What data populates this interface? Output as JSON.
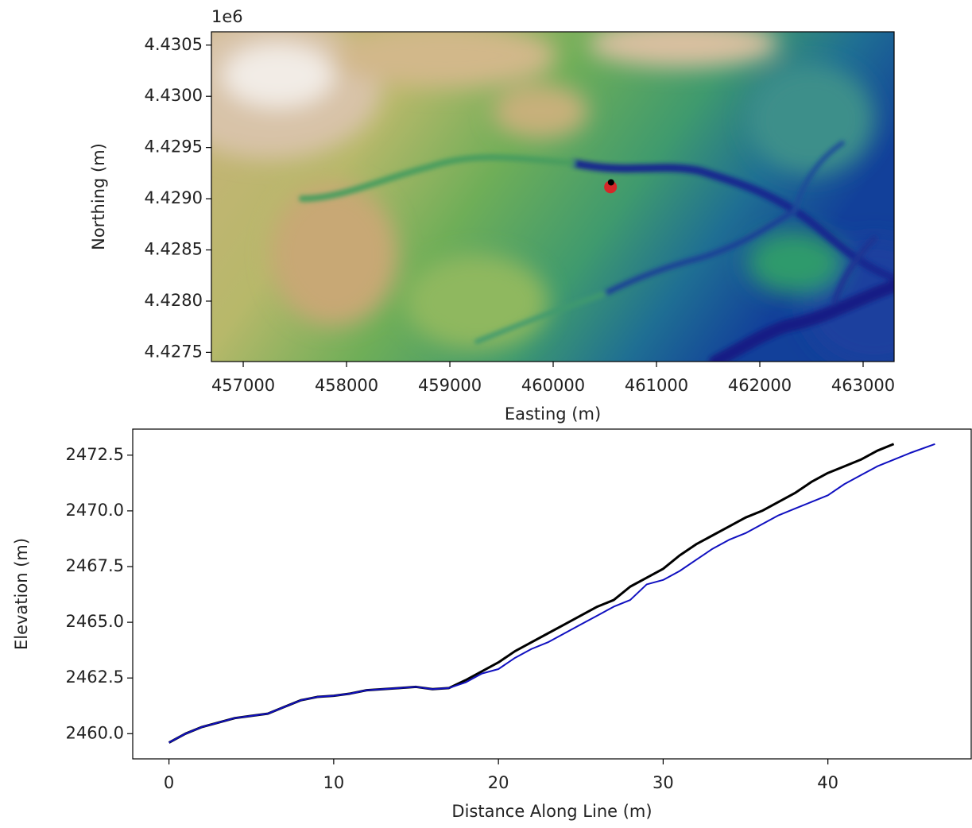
{
  "chart_data": [
    {
      "type": "image",
      "offset_text": "1e6",
      "xlabel": "Easting (m)",
      "ylabel": "Northing (m)",
      "xlim": [
        456692,
        463300
      ],
      "ylim": [
        4427410,
        4430630
      ],
      "xticks": [
        457000,
        458000,
        459000,
        460000,
        461000,
        462000,
        463000
      ],
      "yticks": [
        {
          "value": 4427500,
          "label": "4.4275"
        },
        {
          "value": 4428000,
          "label": "4.4280"
        },
        {
          "value": 4428500,
          "label": "4.4285"
        },
        {
          "value": 4429000,
          "label": "4.4290"
        },
        {
          "value": 4429500,
          "label": "4.4295"
        },
        {
          "value": 4430000,
          "label": "4.4300"
        },
        {
          "value": 4430500,
          "label": "4.4305"
        }
      ],
      "series": [
        {
          "color": "#d62728",
          "x": [
            460555
          ],
          "y": [
            4429115
          ]
        },
        {
          "color": "#000000",
          "x": [
            460560
          ],
          "y": [
            4429160
          ]
        }
      ]
    },
    {
      "type": "line",
      "xlabel": "Distance Along Line (m)",
      "ylabel": "Elevation (m)",
      "xlim": [
        -2.2,
        48.7
      ],
      "ylim": [
        2458.87,
        2473.67
      ],
      "xticks": [
        0,
        10,
        20,
        30,
        40
      ],
      "yticks": [
        {
          "value": 2460,
          "label": "2460.0"
        },
        2462.5,
        {
          "value": 2465,
          "label": "2465.0"
        },
        2467.5,
        {
          "value": 2470,
          "label": "2470.0"
        },
        2472.5
      ],
      "series": [
        {
          "color": "#000000",
          "width": 3,
          "x": [
            0,
            1,
            2,
            3,
            4,
            5,
            6,
            7,
            8,
            9,
            10,
            11,
            12,
            13,
            14,
            15,
            16,
            17,
            18,
            19,
            20,
            21,
            22,
            23,
            24,
            25,
            26,
            27,
            28,
            29,
            30,
            31,
            32,
            33,
            34,
            35,
            36,
            37,
            38,
            39,
            40,
            41,
            42,
            43,
            44
          ],
          "values": [
            2459.6,
            2460.0,
            2460.3,
            2460.5,
            2460.7,
            2460.8,
            2460.9,
            2461.2,
            2461.5,
            2461.65,
            2461.7,
            2461.8,
            2461.95,
            2462.0,
            2462.05,
            2462.1,
            2462.0,
            2462.05,
            2462.4,
            2462.8,
            2463.2,
            2463.7,
            2464.1,
            2464.5,
            2464.9,
            2465.3,
            2465.7,
            2466.0,
            2466.6,
            2467.0,
            2467.4,
            2468.0,
            2468.5,
            2468.9,
            2469.3,
            2469.7,
            2470.0,
            2470.4,
            2470.8,
            2471.3,
            2471.7,
            2472.0,
            2472.3,
            2472.7,
            2473.0
          ]
        },
        {
          "color": "#1010c0",
          "width": 2,
          "x": [
            0,
            1,
            2,
            3,
            4,
            5,
            6,
            7,
            8,
            9,
            10,
            11,
            12,
            13,
            14,
            15,
            16,
            17,
            18,
            19,
            20,
            21,
            22,
            23,
            24,
            25,
            26,
            27,
            28,
            29,
            30,
            31,
            32,
            33,
            34,
            35,
            36,
            37,
            38,
            39,
            40,
            41,
            42,
            43,
            44,
            45,
            46.5
          ],
          "values": [
            2459.6,
            2460.0,
            2460.3,
            2460.5,
            2460.7,
            2460.8,
            2460.9,
            2461.2,
            2461.5,
            2461.65,
            2461.7,
            2461.8,
            2461.95,
            2462.0,
            2462.05,
            2462.1,
            2462.0,
            2462.05,
            2462.3,
            2462.7,
            2462.9,
            2463.4,
            2463.8,
            2464.1,
            2464.5,
            2464.9,
            2465.3,
            2465.7,
            2466.0,
            2466.7,
            2466.9,
            2467.3,
            2467.8,
            2468.3,
            2468.7,
            2469.0,
            2469.4,
            2469.8,
            2470.1,
            2470.4,
            2470.7,
            2471.2,
            2471.6,
            2472.0,
            2472.3,
            2472.6,
            2473.0
          ]
        }
      ]
    }
  ]
}
